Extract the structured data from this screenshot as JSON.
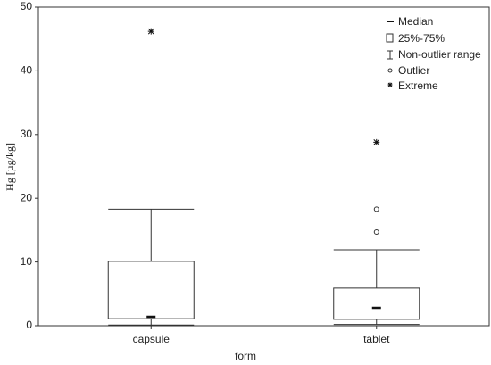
{
  "chart_data": {
    "type": "box",
    "x_label": "form",
    "y_label": "Hg [µg/kg]",
    "categories": [
      "capsule",
      "tablet"
    ],
    "boxes": [
      {
        "min": 0.1,
        "q1": 1.1,
        "median": 1.4,
        "q3": 10.1,
        "max": 18.3,
        "outliers": [],
        "extremes": [
          46.2
        ]
      },
      {
        "min": 0.2,
        "q1": 1.0,
        "median": 2.8,
        "q3": 5.9,
        "max": 11.9,
        "outliers": [
          18.3,
          14.7
        ],
        "extremes": [
          28.8
        ]
      }
    ],
    "ylim": [
      0,
      50
    ],
    "yticks": [
      0,
      10,
      20,
      30,
      40,
      50
    ],
    "legend": {
      "position": "upper right",
      "median": "Median",
      "box": "25%-75%",
      "whisker": "Non-outlier range",
      "outlier": "Outlier",
      "extreme": "Extreme"
    }
  }
}
